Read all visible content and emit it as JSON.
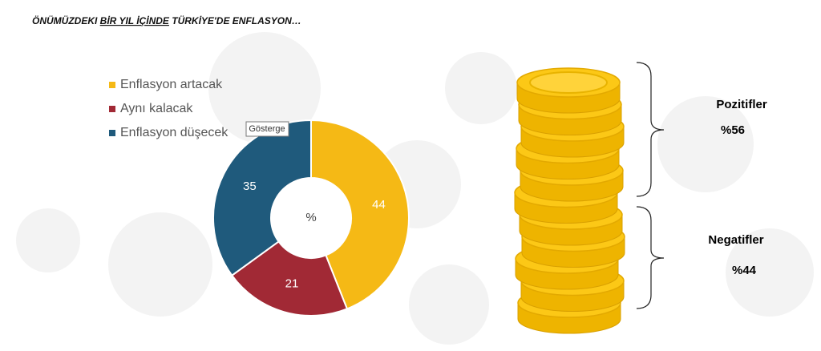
{
  "title_parts": [
    "ÖNÜMÜZDEKI ",
    "BİR YIL İÇİNDE",
    " TÜRKİYE'DE ENFLASYON…"
  ],
  "chart_data": {
    "type": "donut",
    "categories": [
      "Enflasyon artacak",
      "Aynı kalacak",
      "Enflasyon düşecek"
    ],
    "values": [
      44,
      21,
      35
    ],
    "colors": [
      "#f5b915",
      "#a12935",
      "#1f5a7c"
    ],
    "center_label": "%",
    "tooltip": "Gösterge",
    "legend": "top-left"
  },
  "groups": [
    {
      "label": "Pozitifler",
      "value": "%56"
    },
    {
      "label": "Negatifler",
      "value": "%44"
    }
  ]
}
